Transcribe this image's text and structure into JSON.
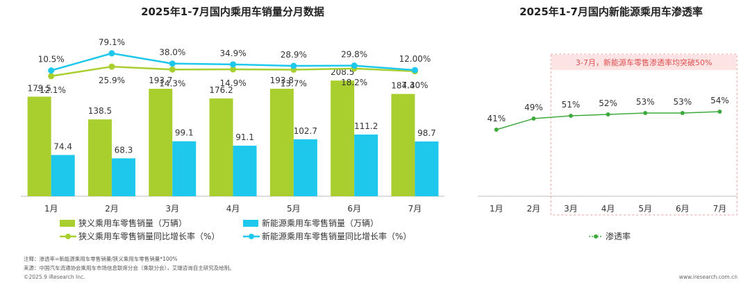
{
  "chart_data": [
    {
      "type": "bar+line",
      "title": "2025年1-7月国内乘用车销量分月数据",
      "categories": [
        "1月",
        "2月",
        "3月",
        "4月",
        "5月",
        "6月",
        "7月"
      ],
      "series": [
        {
          "name": "狭义乘用车零售销量（万辆）",
          "type": "bar",
          "color": "#a9cf2f",
          "values": [
            179.5,
            138.5,
            193.7,
            176.2,
            193.8,
            208.5,
            184.4
          ]
        },
        {
          "name": "新能源乘用车零售销量（万辆）",
          "type": "bar",
          "color": "#1ec8ec",
          "values": [
            74.4,
            68.3,
            99.1,
            91.1,
            102.7,
            111.2,
            98.7
          ]
        },
        {
          "name": "狭义乘用车零售销量同比增长率（%）",
          "type": "line",
          "color": "#a9cf2f",
          "values": [
            -12.1,
            25.9,
            14.3,
            14.9,
            13.7,
            18.2,
            7.3
          ],
          "labels": [
            "-12.1%",
            "25.9%",
            "14.3%",
            "14.9%",
            "13.7%",
            "18.2%",
            "7.30%"
          ]
        },
        {
          "name": "新能源乘用车零售销量同比增长率（%）",
          "type": "line",
          "color": "#1ec8ec",
          "values": [
            10.5,
            79.1,
            38.0,
            34.9,
            28.9,
            29.8,
            12.0
          ],
          "labels": [
            "10.5%",
            "79.1%",
            "38.0%",
            "34.9%",
            "28.9%",
            "29.8%",
            "12.00%"
          ]
        }
      ],
      "bar_labels_green": [
        "179.5",
        "138.5",
        "193.7",
        "176.2",
        "193.8",
        "208.5",
        "184.4"
      ],
      "bar_labels_blue": [
        "74.4",
        "68.3",
        "99.1",
        "91.1",
        "102.7",
        "111.2",
        "98.7"
      ],
      "bar_ylim": [
        0,
        300
      ]
    },
    {
      "type": "line",
      "title": "2025年1-7月国内新能源乘用车渗透率",
      "categories": [
        "1月",
        "2月",
        "3月",
        "4月",
        "5月",
        "6月",
        "7月"
      ],
      "series": [
        {
          "name": "渗透率",
          "color": "#3daa3d",
          "values": [
            41,
            49,
            51,
            52,
            53,
            53,
            54
          ],
          "labels": [
            "41%",
            "49%",
            "51%",
            "52%",
            "53%",
            "53%",
            "54%"
          ]
        }
      ],
      "annotation": "3-7月，新能源车零售渗透率均突破50%",
      "highlight_range": [
        "3月",
        "7月"
      ]
    }
  ],
  "notes": {
    "note": "注释：渗透率=新能源乘用车零售销量/狭义乘用车零售销量*100%",
    "source": "来源：中国汽车流通协会乘用车市场信息联席分会（乘联分会），艾瑞咨询自主研究及绘制。",
    "copyright": "©2025.9 iResearch Inc.",
    "website": "www.iresearch.com.cn"
  }
}
